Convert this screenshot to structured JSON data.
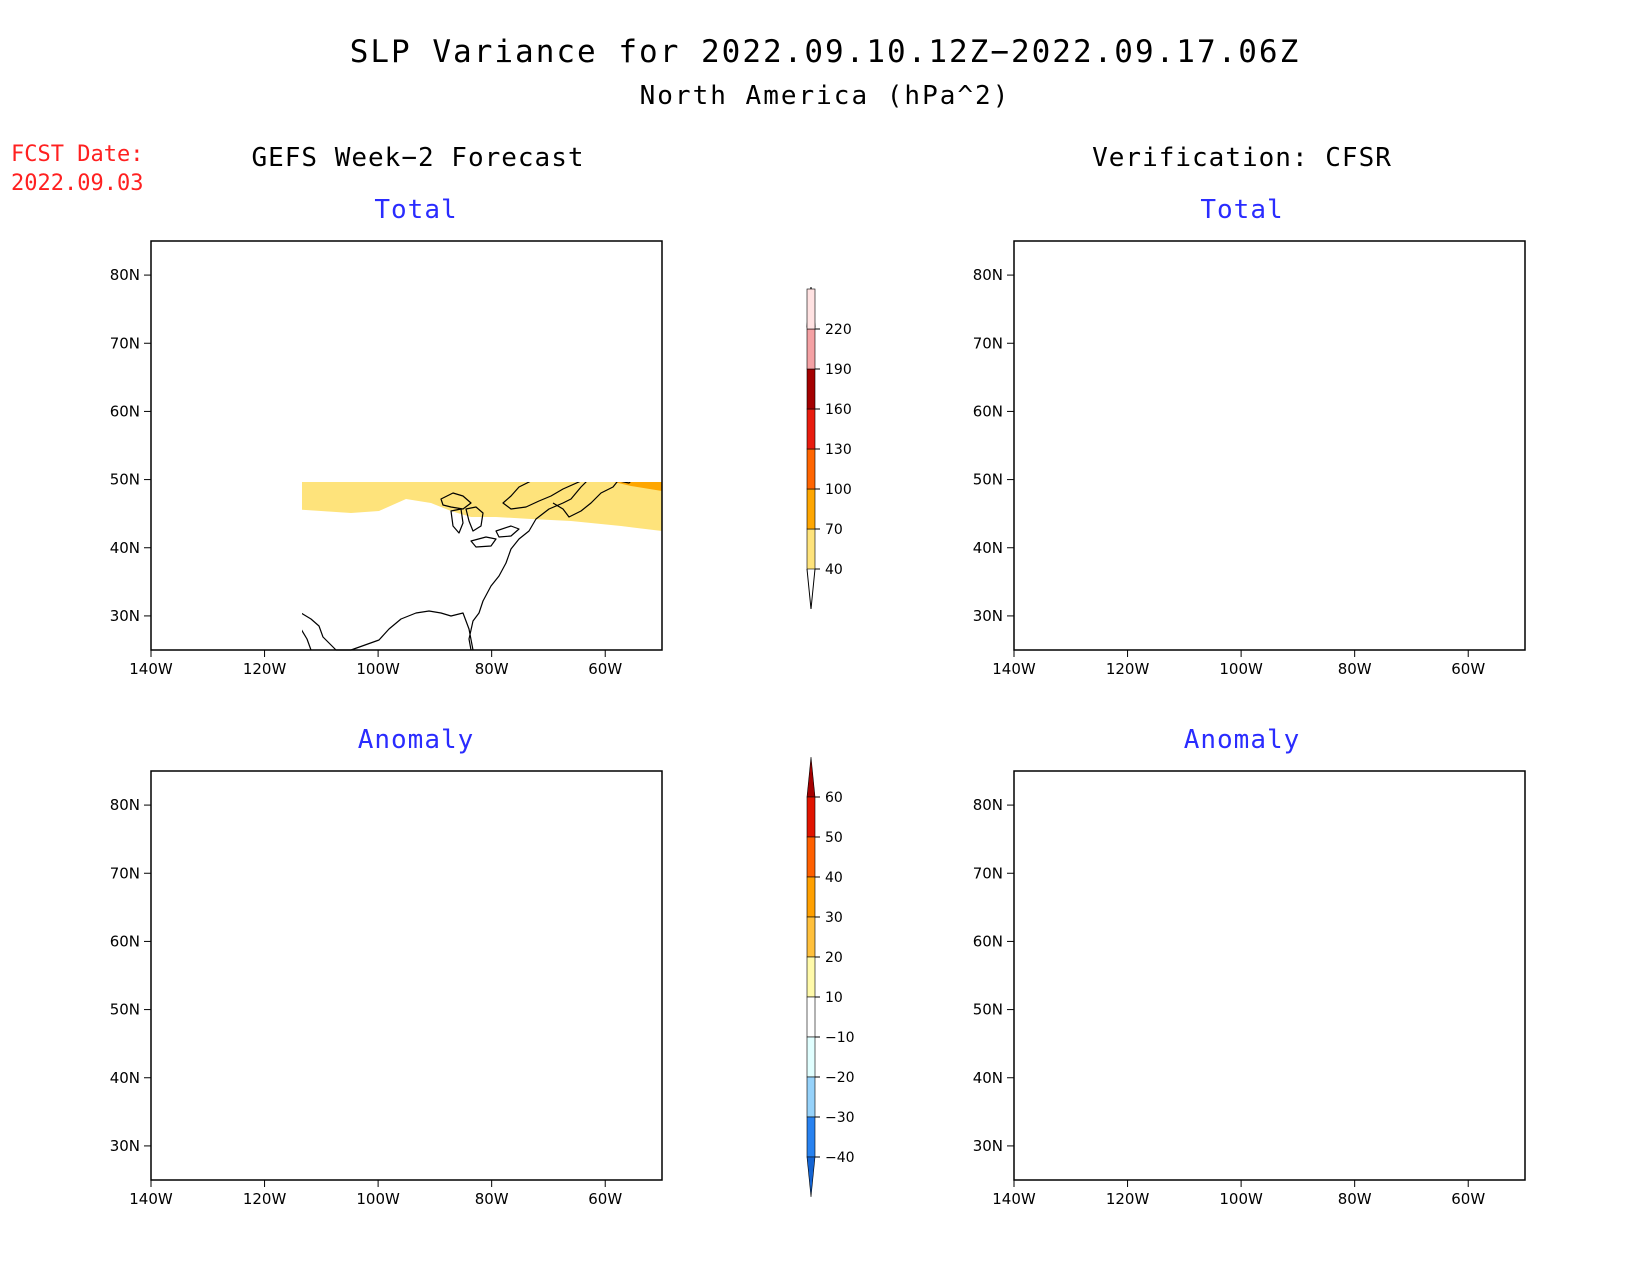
{
  "header": {
    "title": "SLP Variance for 2022.09.10.12Z−2022.09.17.06Z",
    "subtitle": "North America (hPa^2)"
  },
  "fcst_date": {
    "label": "FCST Date:",
    "value": "2022.09.03"
  },
  "columns": {
    "left": "GEFS Week−2 Forecast",
    "right": "Verification: CFSR"
  },
  "panel_titles": {
    "top_left": "Total",
    "top_right": "Total",
    "bottom_left": "Anomaly",
    "bottom_right": "Anomaly"
  },
  "axes": {
    "lat_ticks": [
      "80N",
      "70N",
      "60N",
      "50N",
      "40N",
      "30N"
    ],
    "lon_ticks": [
      "140W",
      "120W",
      "100W",
      "80W",
      "60W"
    ],
    "lon_range": [
      -140,
      -50
    ],
    "lat_range": [
      25,
      85
    ]
  },
  "colorbars": {
    "total": {
      "ticks": [
        "40",
        "70",
        "100",
        "130",
        "160",
        "190",
        "220"
      ],
      "colors": [
        "#fee37b",
        "#fea601",
        "#ff6501",
        "#e81c0f",
        "#a40001",
        "#f4a1a4",
        "#ffe2e2"
      ]
    },
    "anomaly": {
      "ticks": [
        "−40",
        "−30",
        "−20",
        "−10",
        "10",
        "20",
        "30",
        "40",
        "50",
        "60"
      ],
      "colors": [
        "#1464d2",
        "#2882f0",
        "#96d2fa",
        "#e1ffff",
        "#ffffff",
        "#fffaaa",
        "#ffc03c",
        "#ffa000",
        "#ff6000",
        "#e11400",
        "#a50000"
      ]
    }
  }
}
